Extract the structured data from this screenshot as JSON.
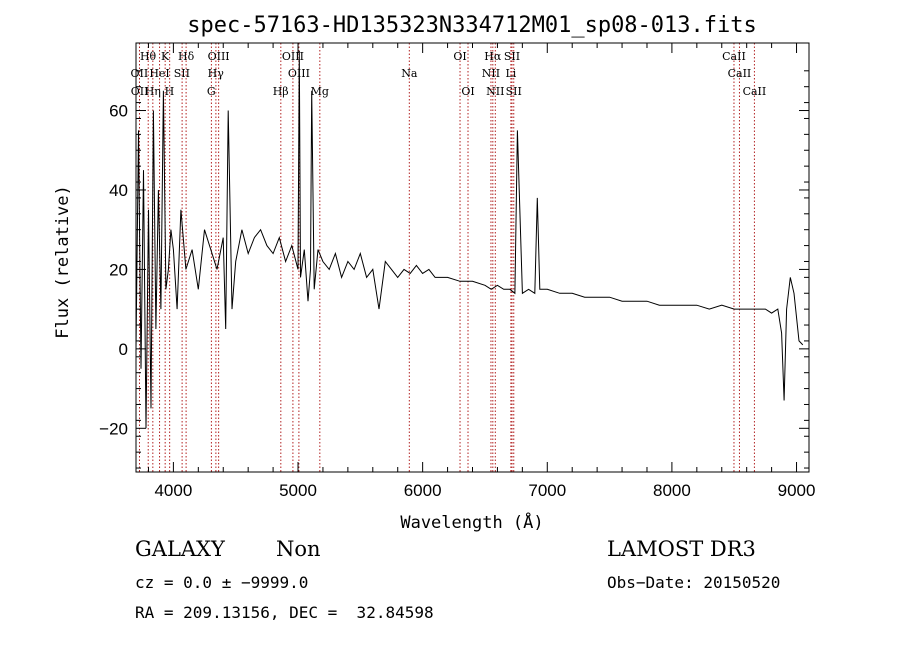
{
  "chart_data": {
    "type": "line",
    "title": "spec-57163-HD135323N334712M01_sp08-013.fits",
    "xlabel": "Wavelength (Å)",
    "ylabel": "Flux (relative)",
    "xlim": [
      3700,
      9100
    ],
    "ylim": [
      -31,
      77
    ],
    "x_ticks": [
      4000,
      5000,
      6000,
      7000,
      8000,
      9000
    ],
    "x_tick_labels": [
      "4000",
      "5000",
      "6000",
      "7000",
      "8000",
      "9000"
    ],
    "y_ticks": [
      -20,
      0,
      20,
      40,
      60
    ],
    "y_tick_labels": [
      "−20",
      "0",
      "20",
      "40",
      "60"
    ],
    "series": [
      {
        "x": [
          3700,
          3720,
          3740,
          3760,
          3780,
          3800,
          3820,
          3840,
          3860,
          3880,
          3900,
          3920,
          3940,
          3960,
          3980,
          4000,
          4030,
          4060,
          4100,
          4150,
          4200,
          4250,
          4300,
          4350,
          4400,
          4420,
          4440,
          4470,
          4500,
          4550,
          4600,
          4650,
          4700,
          4750,
          4800,
          4850,
          4900,
          4950,
          5000,
          5010,
          5020,
          5050,
          5080,
          5100,
          5110,
          5130,
          5160,
          5200,
          5250,
          5300,
          5350,
          5400,
          5450,
          5500,
          5550,
          5600,
          5650,
          5700,
          5750,
          5800,
          5850,
          5900,
          5950,
          6000,
          6050,
          6100,
          6200,
          6300,
          6400,
          6500,
          6550,
          6600,
          6650,
          6700,
          6740,
          6760,
          6800,
          6850,
          6900,
          6920,
          6940,
          7000,
          7100,
          7200,
          7300,
          7400,
          7500,
          7600,
          7700,
          7800,
          7900,
          8000,
          8100,
          8200,
          8300,
          8400,
          8500,
          8600,
          8700,
          8750,
          8800,
          8850,
          8880,
          8900,
          8920,
          8950,
          8980,
          9000,
          9020,
          9050
        ],
        "y": [
          0,
          55,
          -5,
          45,
          -20,
          35,
          -15,
          60,
          5,
          40,
          10,
          65,
          15,
          20,
          30,
          25,
          10,
          35,
          20,
          25,
          15,
          30,
          25,
          20,
          28,
          5,
          60,
          10,
          22,
          30,
          24,
          28,
          30,
          26,
          24,
          28,
          22,
          26,
          20,
          75,
          18,
          25,
          12,
          20,
          65,
          15,
          25,
          22,
          20,
          24,
          18,
          22,
          20,
          24,
          18,
          20,
          10,
          22,
          20,
          18,
          20,
          19,
          21,
          19,
          20,
          18,
          18,
          17,
          17,
          16,
          15,
          16,
          15,
          15,
          14,
          55,
          14,
          15,
          14,
          38,
          15,
          15,
          14,
          14,
          13,
          13,
          13,
          12,
          12,
          12,
          11,
          11,
          11,
          11,
          10,
          11,
          10,
          10,
          10,
          10,
          9,
          10,
          4,
          -13,
          10,
          18,
          14,
          8,
          2,
          1
        ]
      }
    ],
    "line_labels": [
      {
        "text": "Hθ",
        "x": 3797,
        "row": 1
      },
      {
        "text": "K",
        "x": 3934,
        "row": 1
      },
      {
        "text": "Hδ",
        "x": 4102,
        "row": 1
      },
      {
        "text": "OIII",
        "x": 4363,
        "row": 1
      },
      {
        "text": "OIII",
        "x": 4959,
        "row": 1
      },
      {
        "text": "OI",
        "x": 6300,
        "row": 1
      },
      {
        "text": "Hα",
        "x": 6563,
        "row": 1
      },
      {
        "text": "SII",
        "x": 6717,
        "row": 1
      },
      {
        "text": "CaII",
        "x": 8498,
        "row": 1
      },
      {
        "text": "OII",
        "x": 3727,
        "row": 2
      },
      {
        "text": "HeI",
        "x": 3889,
        "row": 2
      },
      {
        "text": "SII",
        "x": 4068,
        "row": 2
      },
      {
        "text": "Hγ",
        "x": 4340,
        "row": 2
      },
      {
        "text": "OIII",
        "x": 5007,
        "row": 2
      },
      {
        "text": "Na",
        "x": 5893,
        "row": 2
      },
      {
        "text": "NII",
        "x": 6548,
        "row": 2
      },
      {
        "text": "Li",
        "x": 6708,
        "row": 2
      },
      {
        "text": "CaII",
        "x": 8542,
        "row": 2
      },
      {
        "text": "OII",
        "x": 3729,
        "row": 3
      },
      {
        "text": "Hη",
        "x": 3835,
        "row": 3
      },
      {
        "text": "H",
        "x": 3968,
        "row": 3
      },
      {
        "text": "G",
        "x": 4304,
        "row": 3
      },
      {
        "text": "Hβ",
        "x": 4861,
        "row": 3
      },
      {
        "text": "Mg",
        "x": 5175,
        "row": 3
      },
      {
        "text": "OI",
        "x": 6364,
        "row": 3
      },
      {
        "text": "NII",
        "x": 6583,
        "row": 3
      },
      {
        "text": "SII",
        "x": 6731,
        "row": 3
      },
      {
        "text": "CaII",
        "x": 8662,
        "row": 3
      }
    ],
    "line_positions": [
      3728,
      3798,
      3835,
      3889,
      3934,
      3970,
      4070,
      4102,
      4305,
      4341,
      4363,
      4862,
      4959,
      5007,
      5175,
      5893,
      6300,
      6364,
      6548,
      6563,
      6583,
      6708,
      6717,
      6731,
      8498,
      8542,
      8662
    ],
    "colors": {
      "spectrum": "#000000",
      "lines": "#b22222"
    }
  },
  "info": {
    "class_label": "GALAXY",
    "subclass_label": "Non",
    "survey": "LAMOST DR3",
    "cz_line": "cz = 0.0 ± −9999.0",
    "obs_date": "Obs−Date: 20150520",
    "coord_line": "RA = 209.13156, DEC =  32.84598"
  }
}
